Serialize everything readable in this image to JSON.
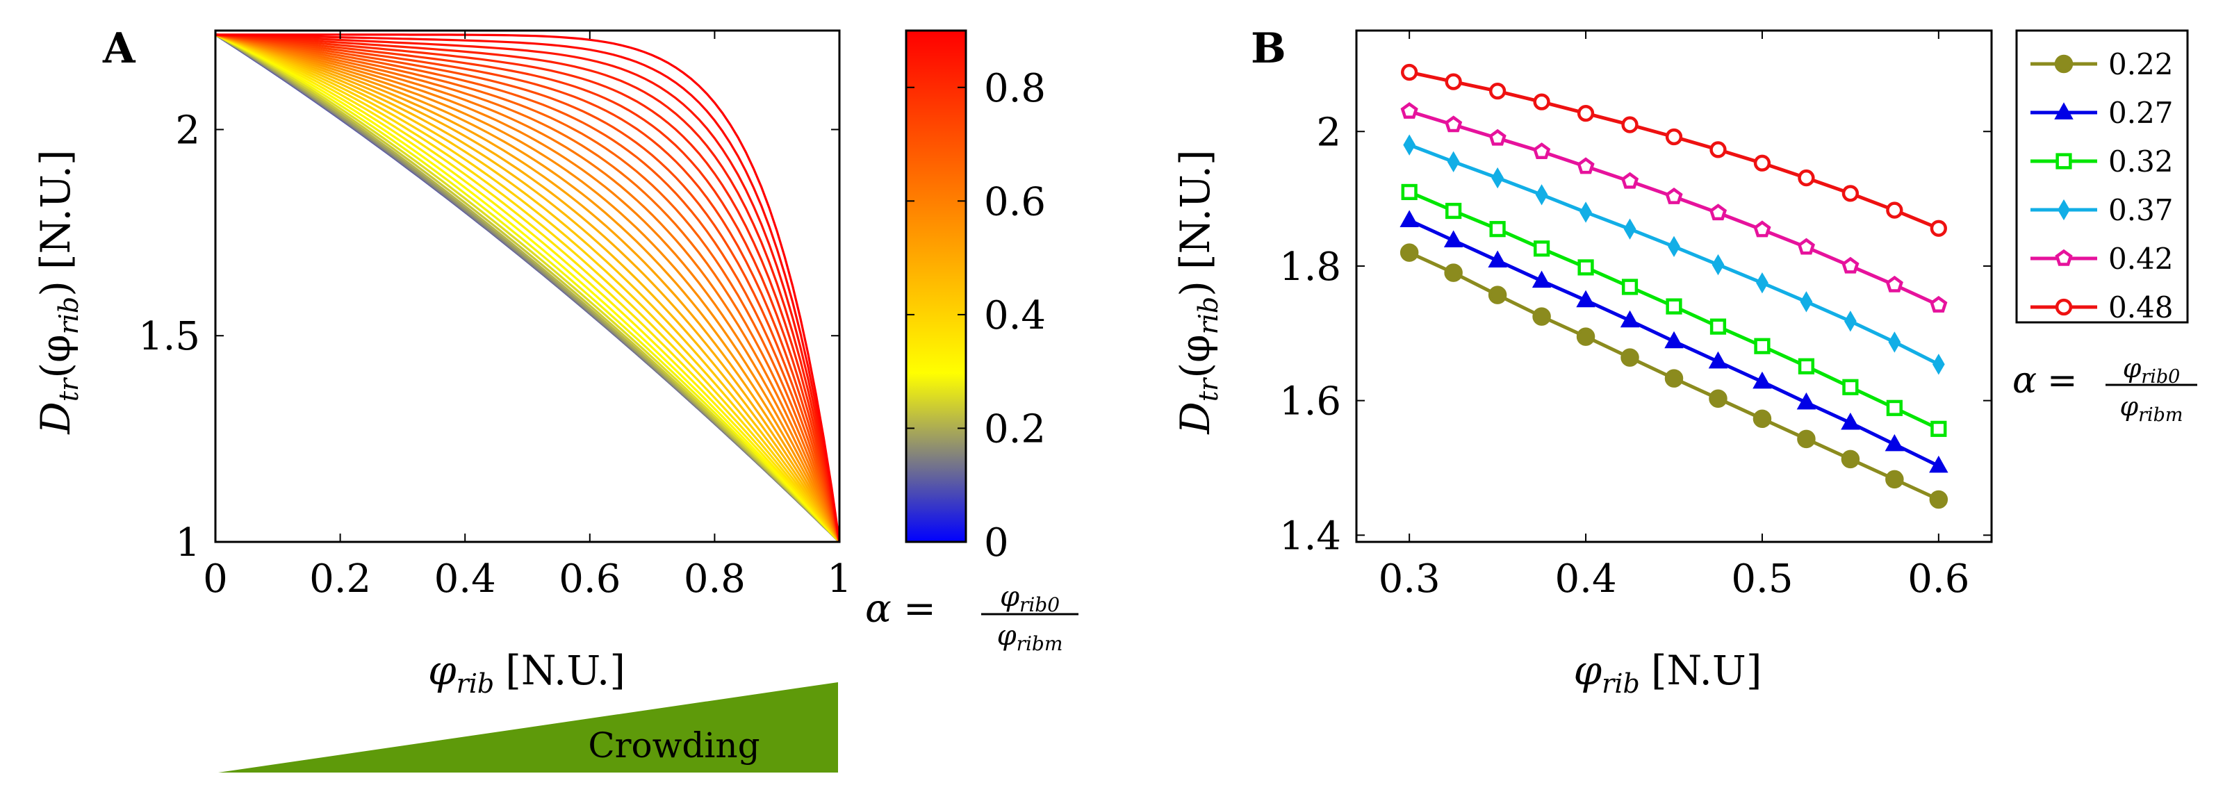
{
  "chart_data": [
    {
      "type": "line",
      "panel_label": "A",
      "xlabel": {
        "sym": "φ",
        "sub": "rib",
        "unit": "[N.U.]"
      },
      "ylabel": {
        "sym": "D",
        "sub": "tr",
        "mid": "(φ",
        "sub2": "rib",
        "end": ")",
        "unit": "[N.U.]"
      },
      "xlim": [
        0,
        1
      ],
      "ylim": [
        1,
        2.24
      ],
      "xticks": [
        0,
        0.2,
        0.4,
        0.6,
        0.8,
        1
      ],
      "xtick_labels": [
        "0",
        "0.2",
        "0.4",
        "0.6",
        "0.8",
        "1"
      ],
      "yticks": [
        1,
        1.5,
        2
      ],
      "ytick_labels": [
        "1",
        "1.5",
        "2"
      ],
      "curve_family": {
        "parameter": "α",
        "alpha_min": 0,
        "alpha_max": 0.9,
        "count": 36,
        "y_start": 2.23,
        "y_end": 1.0
      },
      "colorbar": {
        "range": [
          0,
          0.9
        ],
        "ticks": [
          0,
          0.2,
          0.4,
          0.6,
          0.8
        ],
        "tick_labels": [
          "0",
          "0.2",
          "0.4",
          "0.6",
          "0.8"
        ],
        "colors": [
          "#0000ff",
          "#ffff00",
          "#ff0000"
        ],
        "label": {
          "lhs": "α",
          "eq": "=",
          "num_sym": "φ",
          "num_sub": "rib0",
          "den_sym": "φ",
          "den_sub": "ribm"
        }
      },
      "crowding": {
        "label": "Crowding",
        "color": "#5e9a0a"
      }
    },
    {
      "type": "line",
      "panel_label": "B",
      "xlabel": {
        "sym": "φ",
        "sub": "rib",
        "unit": "[N.U]"
      },
      "ylabel": {
        "sym": "D",
        "sub": "tr",
        "mid": "(φ",
        "sub2": "rib",
        "end": ")",
        "unit": "[N.U.]"
      },
      "xlim": [
        0.27,
        0.63
      ],
      "ylim": [
        1.39,
        2.15
      ],
      "xticks": [
        0.3,
        0.4,
        0.5,
        0.6
      ],
      "xtick_labels": [
        "0.3",
        "0.4",
        "0.5",
        "0.6"
      ],
      "yticks": [
        1.4,
        1.6,
        1.8,
        2.0
      ],
      "ytick_labels": [
        "1.4",
        "1.6",
        "1.8",
        "2"
      ],
      "x": [
        0.3,
        0.325,
        0.35,
        0.375,
        0.4,
        0.425,
        0.45,
        0.475,
        0.5,
        0.525,
        0.55,
        0.575,
        0.6
      ],
      "series": [
        {
          "name": "0.22",
          "color": "#8b8b1e",
          "marker": "circle-filled",
          "values": [
            1.82,
            1.79,
            1.757,
            1.725,
            1.695,
            1.664,
            1.633,
            1.603,
            1.573,
            1.543,
            1.513,
            1.483,
            1.453
          ]
        },
        {
          "name": "0.27",
          "color": "#0000e6",
          "marker": "triangle-filled",
          "values": [
            1.868,
            1.838,
            1.808,
            1.778,
            1.749,
            1.719,
            1.688,
            1.658,
            1.628,
            1.597,
            1.567,
            1.535,
            1.503
          ]
        },
        {
          "name": "0.32",
          "color": "#00e600",
          "marker": "square-open",
          "values": [
            1.91,
            1.882,
            1.855,
            1.826,
            1.798,
            1.769,
            1.74,
            1.71,
            1.681,
            1.651,
            1.62,
            1.589,
            1.558
          ]
        },
        {
          "name": "0.37",
          "color": "#12aee6",
          "marker": "diamond-filled",
          "values": [
            1.98,
            1.955,
            1.931,
            1.906,
            1.88,
            1.855,
            1.829,
            1.802,
            1.775,
            1.747,
            1.718,
            1.687,
            1.654
          ]
        },
        {
          "name": "0.42",
          "color": "#e6129c",
          "marker": "pentagon-open",
          "values": [
            2.03,
            2.01,
            1.99,
            1.97,
            1.948,
            1.926,
            1.903,
            1.879,
            1.854,
            1.828,
            1.8,
            1.772,
            1.742
          ]
        },
        {
          "name": "0.48",
          "color": "#ee1111",
          "marker": "circle-open",
          "values": [
            2.088,
            2.074,
            2.06,
            2.044,
            2.027,
            2.01,
            1.992,
            1.973,
            1.953,
            1.931,
            1.908,
            1.883,
            1.856
          ]
        }
      ],
      "legend_caption": {
        "lhs": "α",
        "eq": "=",
        "num_sym": "φ",
        "num_sub": "rib0",
        "den_sym": "φ",
        "den_sub": "ribm"
      }
    }
  ]
}
